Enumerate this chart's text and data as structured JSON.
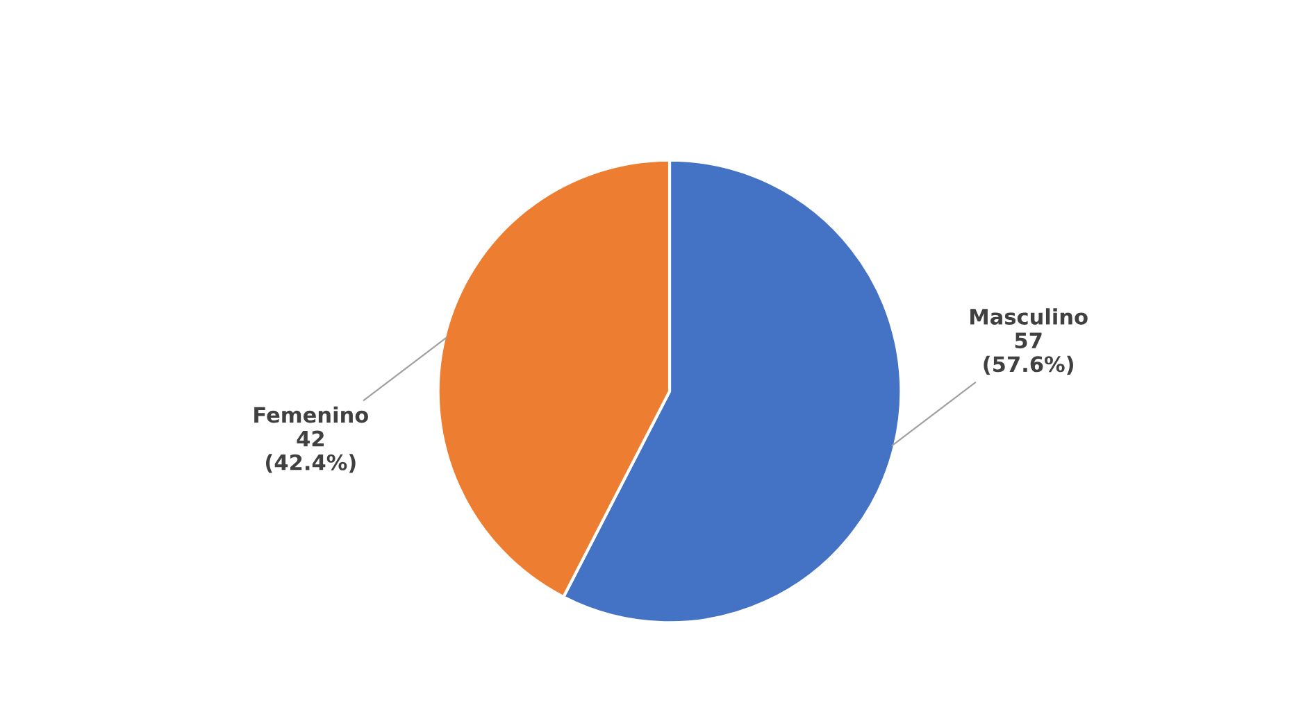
{
  "chart_data": {
    "type": "pie",
    "categories": [
      "Masculino",
      "Femenino"
    ],
    "values": [
      57,
      42
    ],
    "value_labels": [
      "57\n(57.6%)",
      "42\n(42.4%)"
    ],
    "colors": [
      "#4472c4",
      "#ed7d31"
    ]
  }
}
